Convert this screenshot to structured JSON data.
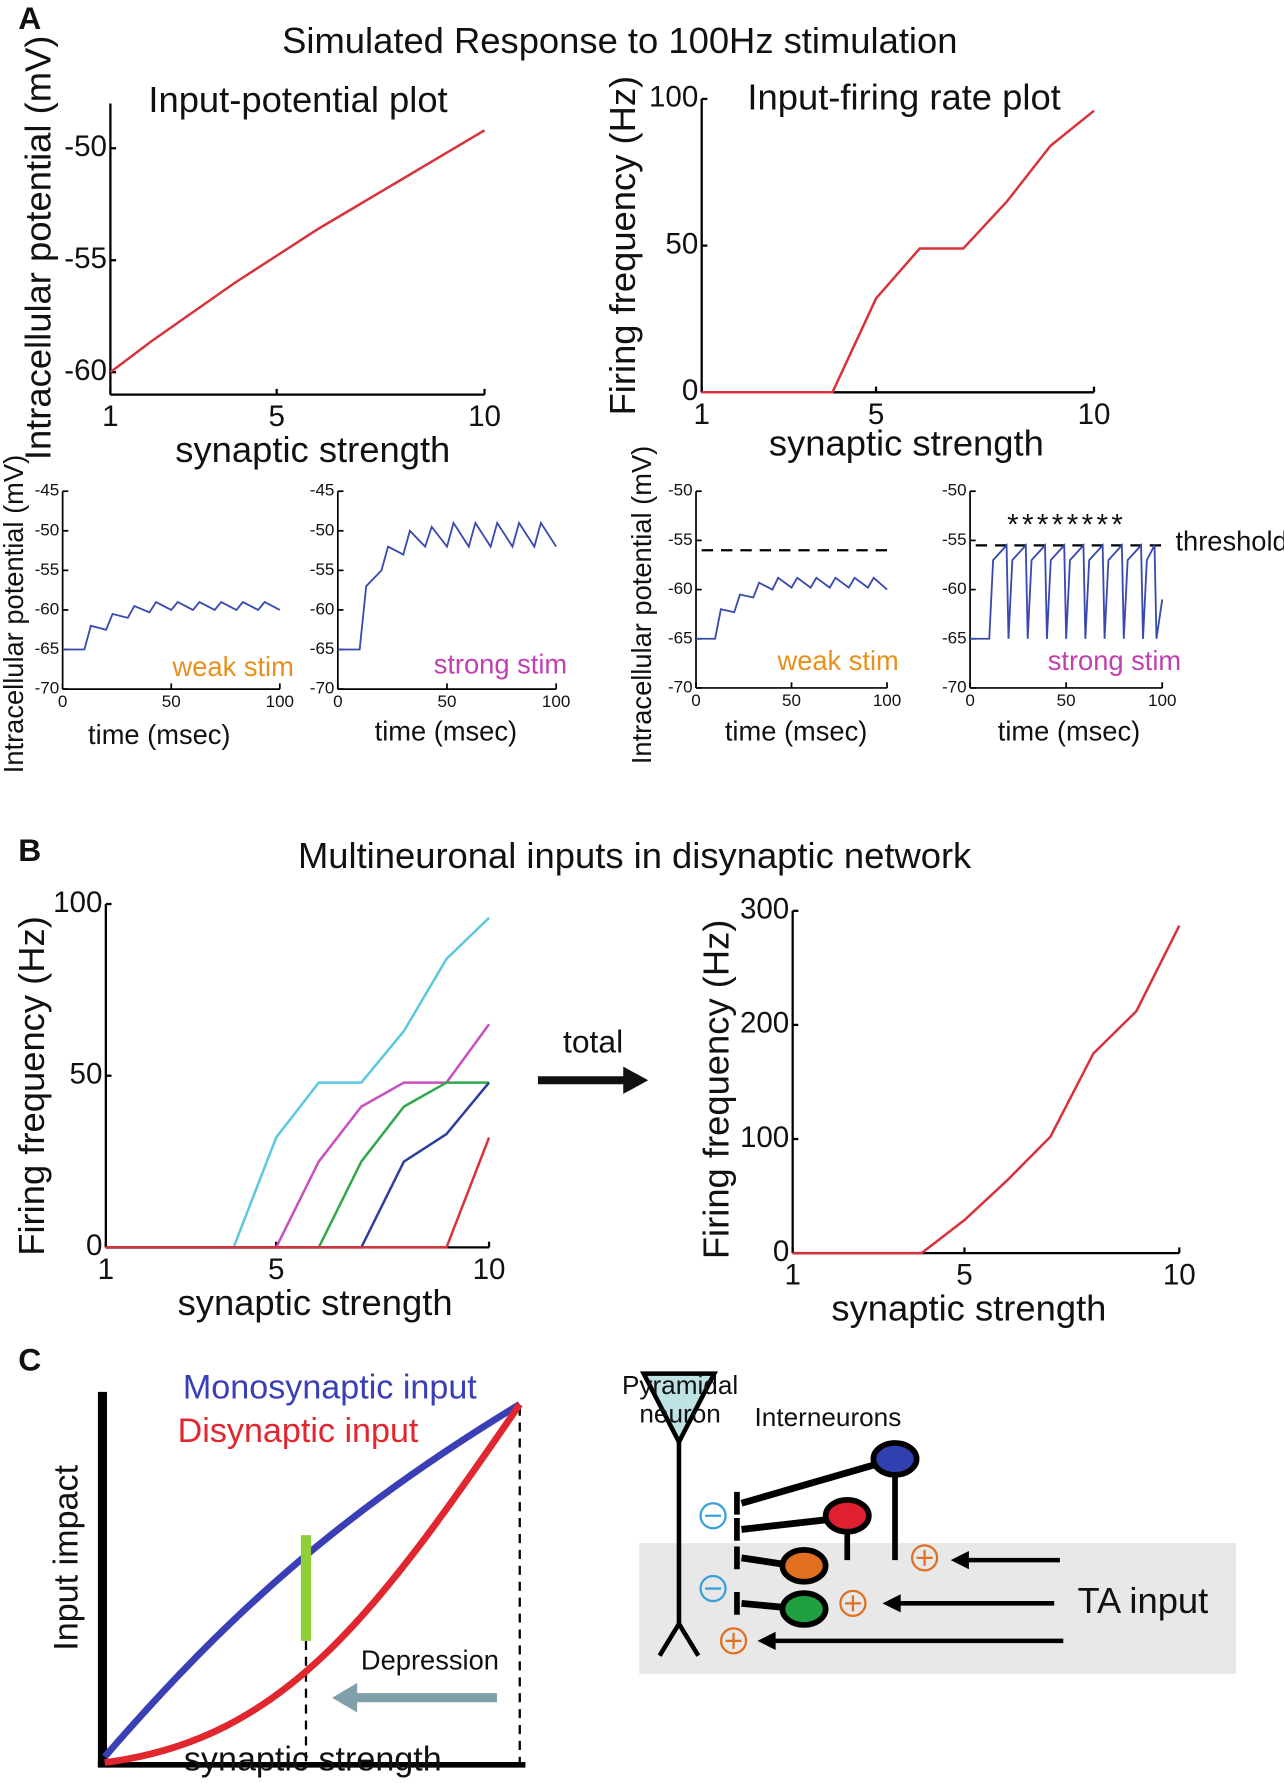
{
  "panels": [
    {
      "label": "A",
      "title": "Simulated Response to 100Hz stimulation"
    },
    {
      "label": "B",
      "title": "Multineuronal inputs in disynaptic network"
    },
    {
      "label": "C"
    }
  ],
  "chart_data": [
    {
      "type": "line",
      "title": "Input-potential plot",
      "xlabel": "synaptic strength",
      "ylabel": "Intracellular potential (mV)",
      "x": [
        1,
        2,
        3,
        4,
        5,
        6,
        7,
        8,
        9,
        10
      ],
      "values": [
        -60,
        -58.6,
        -57.3,
        -56.0,
        -54.8,
        -53.6,
        -52.5,
        -51.4,
        -50.3,
        -49.2
      ],
      "color": "#d8323a",
      "xlim": [
        1,
        10
      ],
      "ylim": [
        -61,
        -48
      ],
      "xticks": [
        1,
        5,
        10
      ],
      "yticks": [
        -60,
        -55,
        -50
      ]
    },
    {
      "type": "line",
      "title": "Input-firing rate plot",
      "xlabel": "synaptic strength",
      "ylabel": "Firing frequency (Hz)",
      "x": [
        1,
        2,
        3,
        4,
        5,
        6,
        7,
        8,
        9,
        10
      ],
      "values": [
        0,
        0,
        0,
        0,
        32,
        49,
        49,
        65,
        84,
        96
      ],
      "color": "#d8323a",
      "xlim": [
        1,
        10
      ],
      "ylim": [
        0,
        100
      ],
      "xticks": [
        1,
        5,
        10
      ],
      "yticks": [
        0,
        50,
        100
      ]
    },
    {
      "type": "line",
      "xlabel": "time (msec)",
      "ylabel": "Intracellular potential (mV)",
      "stim_label": "weak stim",
      "stim_color": "#e8901c",
      "x": [
        0,
        10,
        13,
        20,
        23,
        30,
        33,
        40,
        43,
        50,
        53,
        60,
        63,
        70,
        73,
        80,
        83,
        90,
        93,
        100
      ],
      "values": [
        -65,
        -65,
        -62,
        -62.5,
        -60.5,
        -61,
        -59.5,
        -60.3,
        -59,
        -60,
        -59,
        -60,
        -59,
        -60,
        -59,
        -60,
        -59,
        -60,
        -59,
        -60
      ],
      "color": "#3a49b0",
      "xlim": [
        0,
        100
      ],
      "ylim": [
        -70,
        -45
      ],
      "xticks": [
        0,
        50,
        100
      ],
      "yticks": [
        -70,
        -65,
        -60,
        -55,
        -50,
        -45
      ]
    },
    {
      "type": "line",
      "xlabel": "time (msec)",
      "stim_label": "strong stim",
      "stim_color": "#c040b0",
      "x": [
        0,
        10,
        13,
        20,
        23,
        30,
        33,
        40,
        43,
        50,
        53,
        60,
        63,
        70,
        73,
        80,
        83,
        90,
        93,
        100
      ],
      "values": [
        -65,
        -65,
        -57,
        -55,
        -52,
        -53,
        -50,
        -52,
        -49.5,
        -52,
        -49,
        -52,
        -49,
        -52,
        -49,
        -52,
        -49,
        -52,
        -49,
        -52
      ],
      "color": "#3a49b0",
      "xlim": [
        0,
        100
      ],
      "ylim": [
        -70,
        -45
      ],
      "xticks": [
        0,
        50,
        100
      ],
      "yticks": [
        -70,
        -65,
        -60,
        -55,
        -50,
        -45
      ]
    },
    {
      "type": "line",
      "xlabel": "time (msec)",
      "ylabel": "Intracellular potential (mV)",
      "stim_label": "weak stim",
      "stim_color": "#e8901c",
      "threshold": -56,
      "x": [
        0,
        10,
        13,
        20,
        23,
        30,
        33,
        40,
        43,
        50,
        53,
        60,
        63,
        70,
        73,
        80,
        83,
        90,
        93,
        100
      ],
      "values": [
        -65,
        -65,
        -62,
        -62.3,
        -60.5,
        -60.8,
        -59.3,
        -60,
        -58.8,
        -59.8,
        -58.8,
        -59.8,
        -58.8,
        -59.8,
        -58.8,
        -59.8,
        -58.8,
        -59.8,
        -58.8,
        -60
      ],
      "color": "#3a49b0",
      "xlim": [
        0,
        100
      ],
      "ylim": [
        -70,
        -50
      ],
      "xticks": [
        0,
        50,
        100
      ],
      "yticks": [
        -70,
        -65,
        -60,
        -55,
        -50
      ]
    },
    {
      "type": "line",
      "xlabel": "time (msec)",
      "stim_label": "strong stim",
      "stim_color": "#c040b0",
      "threshold": -55.5,
      "threshold_label": "threshold",
      "annotation": "********",
      "x": [
        0,
        10,
        12,
        19,
        20,
        22,
        29,
        30,
        32,
        39,
        40,
        42,
        49,
        50,
        52,
        59,
        60,
        62,
        69,
        70,
        72,
        79,
        80,
        82,
        89,
        90,
        92,
        96,
        97,
        100
      ],
      "values": [
        -65,
        -65,
        -57,
        -55.5,
        -65,
        -57,
        -55.5,
        -65,
        -57,
        -55.5,
        -65,
        -57,
        -55.5,
        -65,
        -57,
        -55.5,
        -65,
        -57,
        -55.5,
        -65,
        -57,
        -55.5,
        -65,
        -57,
        -55.5,
        -65,
        -57,
        -55.5,
        -65,
        -61
      ],
      "color": "#3a49b0",
      "xlim": [
        0,
        100
      ],
      "ylim": [
        -70,
        -50
      ],
      "xticks": [
        0,
        50,
        100
      ],
      "yticks": [
        -70,
        -65,
        -60,
        -55,
        -50
      ]
    },
    {
      "type": "multiline",
      "xlabel": "synaptic strength",
      "ylabel": "Firing frequency (Hz)",
      "x": [
        1,
        2,
        3,
        4,
        5,
        6,
        7,
        8,
        9,
        10
      ],
      "series": [
        {
          "color": "#5bc8e0",
          "values": [
            0,
            0,
            0,
            0,
            32,
            48,
            48,
            63,
            84,
            96
          ]
        },
        {
          "color": "#c84fbf",
          "values": [
            0,
            0,
            0,
            0,
            0,
            25,
            41,
            48,
            48,
            65
          ]
        },
        {
          "color": "#2ea84a",
          "values": [
            0,
            0,
            0,
            0,
            0,
            0,
            25,
            41,
            48,
            48
          ]
        },
        {
          "color": "#2c3fa0",
          "values": [
            0,
            0,
            0,
            0,
            0,
            0,
            0,
            25,
            33,
            48
          ]
        },
        {
          "color": "#d8323a",
          "values": [
            0,
            0,
            0,
            0,
            0,
            0,
            0,
            0,
            0,
            32
          ]
        }
      ],
      "xlim": [
        1,
        10
      ],
      "ylim": [
        0,
        100
      ],
      "xticks": [
        1,
        5,
        10
      ],
      "yticks": [
        0,
        50,
        100
      ],
      "arrow_label": "total"
    },
    {
      "type": "line",
      "xlabel": "synaptic strength",
      "ylabel": "Firing frequency (Hz)",
      "x": [
        1,
        2,
        3,
        4,
        5,
        6,
        7,
        8,
        9,
        10
      ],
      "values": [
        0,
        0,
        0,
        0,
        29,
        64,
        102,
        175,
        212,
        287
      ],
      "color": "#d8323a",
      "xlim": [
        1,
        10
      ],
      "ylim": [
        0,
        300
      ],
      "xticks": [
        1,
        5,
        10
      ],
      "yticks": [
        0,
        100,
        200,
        300
      ]
    }
  ],
  "diagram": {
    "curves": [
      "Monosynaptic input",
      "Disynaptic input"
    ],
    "ylabel": "Input impact",
    "xlabel": "synaptic strength",
    "arrow_label": "Depression",
    "pyramidal": [
      "Pyramidal",
      "neuron"
    ],
    "interneurons": "Interneurons",
    "input": "TA input"
  }
}
